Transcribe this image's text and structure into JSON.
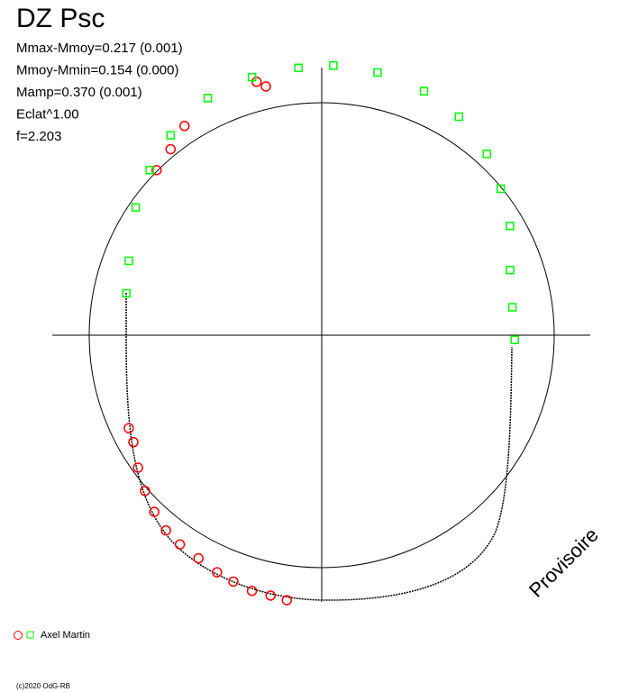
{
  "chart_data": {
    "type": "polar-scatter",
    "title": "DZ Psc",
    "stats": [
      "Mmax-Mmoy=0.217 (0.001)",
      "Mmoy-Mmin=0.154 (0.000)",
      "Mamp=0.370 (0.001)",
      "Eclat^1.00",
      "f=2.203"
    ],
    "watermark": "Provisoire",
    "legend_label": "Axel Martin",
    "credit": "(c)2020 OdG-RB",
    "xlim": [
      -1,
      1
    ],
    "ylim": [
      -1,
      1
    ],
    "series": [
      {
        "color": "#ff0000",
        "marker": "circle",
        "x": [
          -0.71,
          -0.65,
          -0.59,
          -0.28,
          -0.24,
          -0.83,
          -0.81,
          -0.79,
          -0.76,
          -0.72,
          -0.67,
          -0.61,
          -0.53,
          -0.45,
          -0.38,
          -0.3,
          -0.22,
          -0.15
        ],
        "y": [
          0.71,
          0.8,
          0.9,
          1.09,
          1.07,
          -0.4,
          -0.46,
          -0.57,
          -0.67,
          -0.76,
          -0.84,
          -0.9,
          -0.96,
          -1.02,
          -1.06,
          -1.1,
          -1.12,
          -1.14
        ]
      },
      {
        "color": "#00ff00",
        "marker": "square",
        "x": [
          -0.84,
          -0.83,
          -0.8,
          -0.74,
          -0.65,
          -0.49,
          -0.3,
          -0.1,
          0.05,
          0.24,
          0.44,
          0.59,
          0.71,
          0.77,
          0.81,
          0.81,
          0.82,
          0.83
        ],
        "y": [
          0.18,
          0.32,
          0.55,
          0.71,
          0.86,
          1.02,
          1.11,
          1.15,
          1.16,
          1.13,
          1.05,
          0.94,
          0.78,
          0.63,
          0.47,
          0.28,
          0.12,
          -0.02
        ]
      }
    ]
  }
}
